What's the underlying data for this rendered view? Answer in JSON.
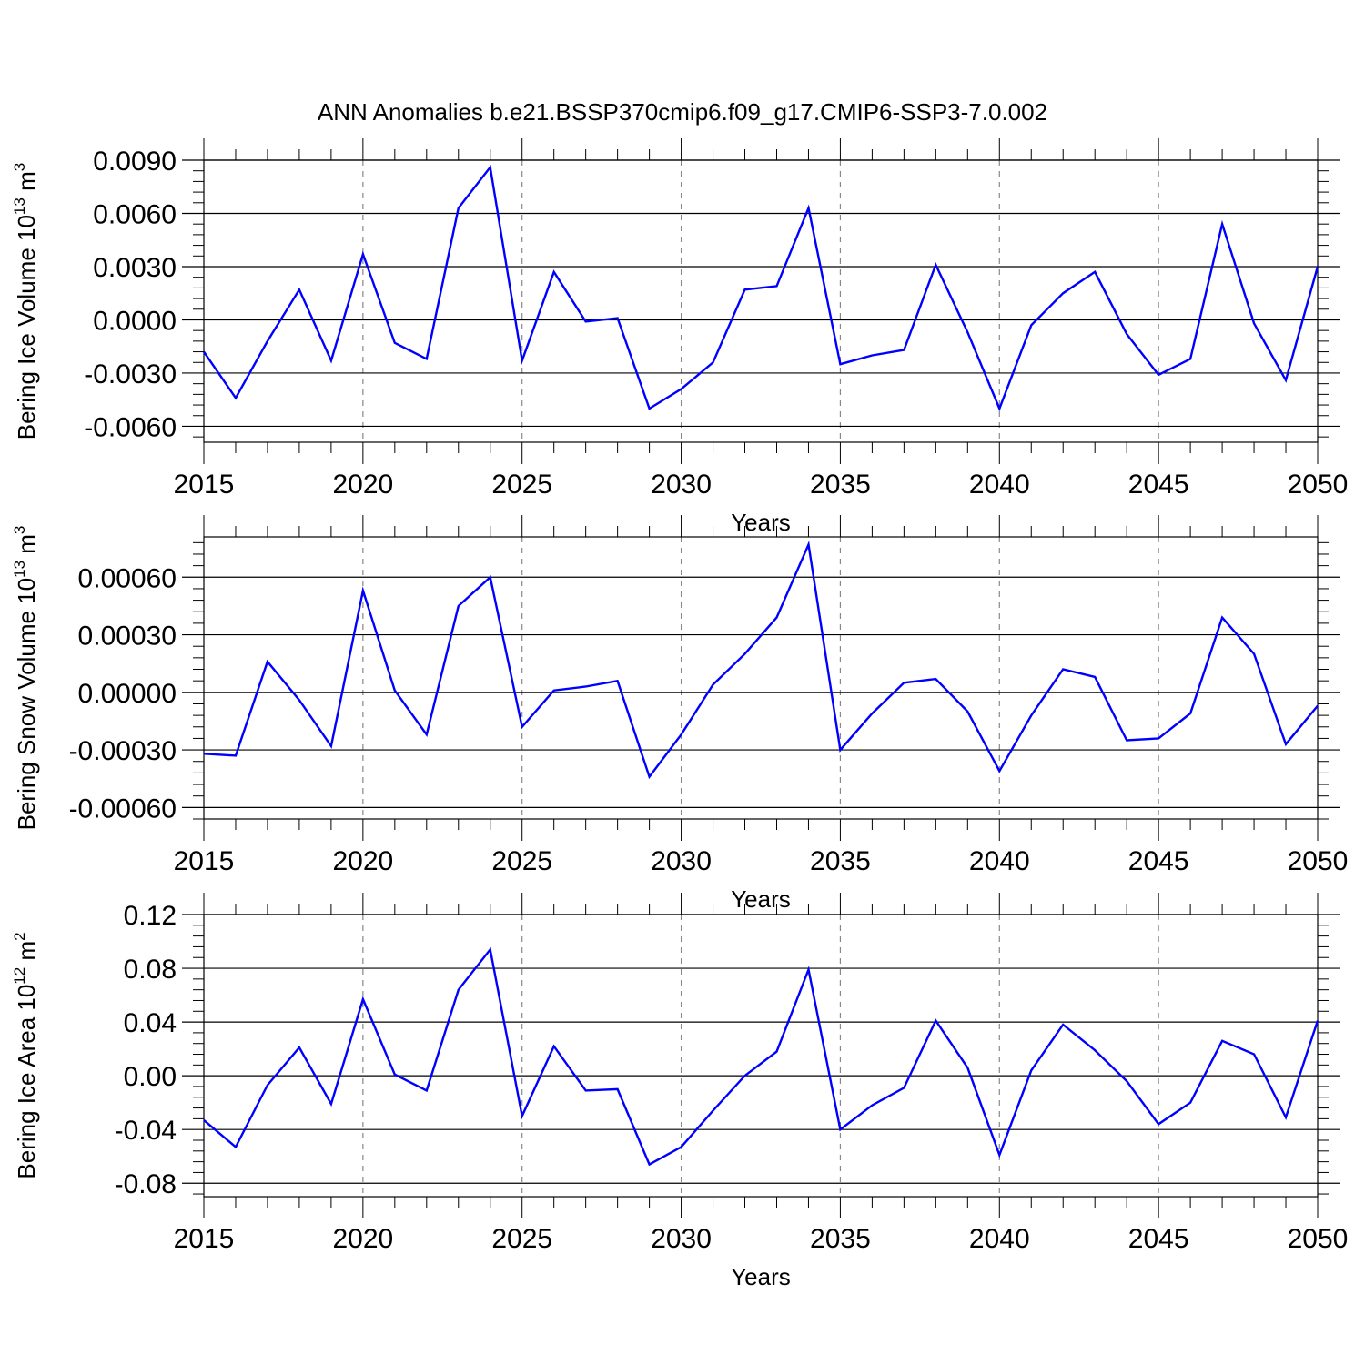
{
  "figure": {
    "title": "ANN Anomalies b.e21.BSSP370cmip6.f09_g17.CMIP6-SSP3-7.0.002",
    "line_color": "#0000ff",
    "grid_color": "#888888"
  },
  "chart_data": [
    {
      "type": "line",
      "ylabel": "Bering Ice Volume 10",
      "ylabel_exp": "13",
      "ylabel_unit": " m",
      "ylabel_unit_exp": "3",
      "xlabel": "Years",
      "xlim": [
        2015,
        2050
      ],
      "ylim": [
        -0.0069,
        0.009
      ],
      "xticks": [
        2015,
        2020,
        2025,
        2030,
        2035,
        2040,
        2045,
        2050
      ],
      "xtick_labels": [
        "2015",
        "2020",
        "2025",
        "2030",
        "2035",
        "2040",
        "2045",
        "2050"
      ],
      "yticks": [
        -0.006,
        -0.003,
        0.0,
        0.003,
        0.006,
        0.009
      ],
      "ytick_labels": [
        "-0.0060",
        "-0.0030",
        "0.0000",
        "0.0030",
        "0.0060",
        "0.0090"
      ],
      "grid": "vertical dashed at major x ticks",
      "x": [
        2015,
        2016,
        2017,
        2018,
        2019,
        2020,
        2021,
        2022,
        2023,
        2024,
        2025,
        2026,
        2027,
        2028,
        2029,
        2030,
        2031,
        2032,
        2033,
        2034,
        2035,
        2036,
        2037,
        2038,
        2039,
        2040,
        2041,
        2042,
        2043,
        2044,
        2045,
        2046,
        2047,
        2048,
        2049,
        2050
      ],
      "series": [
        {
          "values": [
            -0.0018,
            -0.0044,
            -0.0012,
            0.0017,
            -0.0023,
            0.0037,
            -0.0013,
            -0.0022,
            0.0063,
            0.0086,
            -0.0023,
            0.0027,
            -0.0001,
            0.0001,
            -0.005,
            -0.0039,
            -0.0024,
            0.0017,
            0.0019,
            0.0063,
            -0.0025,
            -0.002,
            -0.0017,
            0.0031,
            -0.0007,
            -0.005,
            -0.0003,
            0.0015,
            0.0027,
            -0.0008,
            -0.0031,
            -0.0022,
            0.0054,
            -0.0002,
            -0.0034,
            0.003
          ]
        }
      ]
    },
    {
      "type": "line",
      "ylabel": "Bering Snow Volume 10",
      "ylabel_exp": "13",
      "ylabel_unit": " m",
      "ylabel_unit_exp": "3",
      "xlabel": "Years",
      "xlim": [
        2015,
        2050
      ],
      "ylim": [
        -0.00066,
        0.00081
      ],
      "xticks": [
        2015,
        2020,
        2025,
        2030,
        2035,
        2040,
        2045,
        2050
      ],
      "xtick_labels": [
        "2015",
        "2020",
        "2025",
        "2030",
        "2035",
        "2040",
        "2045",
        "2050"
      ],
      "yticks": [
        -0.0006,
        -0.0003,
        0.0,
        0.0003,
        0.0006
      ],
      "ytick_labels": [
        "-0.00060",
        "-0.00030",
        "0.00000",
        "0.00030",
        "0.00060"
      ],
      "grid": "vertical dashed at major x ticks",
      "x": [
        2015,
        2016,
        2017,
        2018,
        2019,
        2020,
        2021,
        2022,
        2023,
        2024,
        2025,
        2026,
        2027,
        2028,
        2029,
        2030,
        2031,
        2032,
        2033,
        2034,
        2035,
        2036,
        2037,
        2038,
        2039,
        2040,
        2041,
        2042,
        2043,
        2044,
        2045,
        2046,
        2047,
        2048,
        2049,
        2050
      ],
      "series": [
        {
          "values": [
            -0.00032,
            -0.00033,
            0.00016,
            -4e-05,
            -0.00028,
            0.00053,
            1e-05,
            -0.00022,
            0.00045,
            0.0006,
            -0.00018,
            1e-05,
            3e-05,
            6e-05,
            -0.00044,
            -0.00022,
            4e-05,
            0.0002,
            0.00039,
            0.00077,
            -0.0003,
            -0.00011,
            5e-05,
            7e-05,
            -0.0001,
            -0.00041,
            -0.00012,
            0.00012,
            8e-05,
            -0.00025,
            -0.00024,
            -0.00011,
            0.00039,
            0.0002,
            -0.00027,
            -7e-05
          ]
        }
      ]
    },
    {
      "type": "line",
      "ylabel": "Bering Ice Area 10",
      "ylabel_exp": "12",
      "ylabel_unit": " m",
      "ylabel_unit_exp": "2",
      "xlabel": "Years",
      "xlim": [
        2015,
        2050
      ],
      "ylim": [
        -0.09,
        0.12
      ],
      "xticks": [
        2015,
        2020,
        2025,
        2030,
        2035,
        2040,
        2045,
        2050
      ],
      "xtick_labels": [
        "2015",
        "2020",
        "2025",
        "2030",
        "2035",
        "2040",
        "2045",
        "2050"
      ],
      "yticks": [
        -0.08,
        -0.04,
        0.0,
        0.04,
        0.08,
        0.12
      ],
      "ytick_labels": [
        "-0.08",
        "-0.04",
        "0.00",
        "0.04",
        "0.08",
        "0.12"
      ],
      "grid": "vertical dashed at major x ticks",
      "x": [
        2015,
        2016,
        2017,
        2018,
        2019,
        2020,
        2021,
        2022,
        2023,
        2024,
        2025,
        2026,
        2027,
        2028,
        2029,
        2030,
        2031,
        2032,
        2033,
        2034,
        2035,
        2036,
        2037,
        2038,
        2039,
        2040,
        2041,
        2042,
        2043,
        2044,
        2045,
        2046,
        2047,
        2048,
        2049,
        2050
      ],
      "series": [
        {
          "values": [
            -0.033,
            -0.053,
            -0.007,
            0.021,
            -0.021,
            0.057,
            0.001,
            -0.011,
            0.064,
            0.094,
            -0.03,
            0.022,
            -0.011,
            -0.01,
            -0.066,
            -0.053,
            -0.026,
            0.0,
            0.018,
            0.079,
            -0.04,
            -0.022,
            -0.009,
            0.041,
            0.006,
            -0.059,
            0.004,
            0.038,
            0.019,
            -0.004,
            -0.036,
            -0.02,
            0.026,
            0.016,
            -0.031,
            0.041
          ]
        }
      ]
    }
  ]
}
